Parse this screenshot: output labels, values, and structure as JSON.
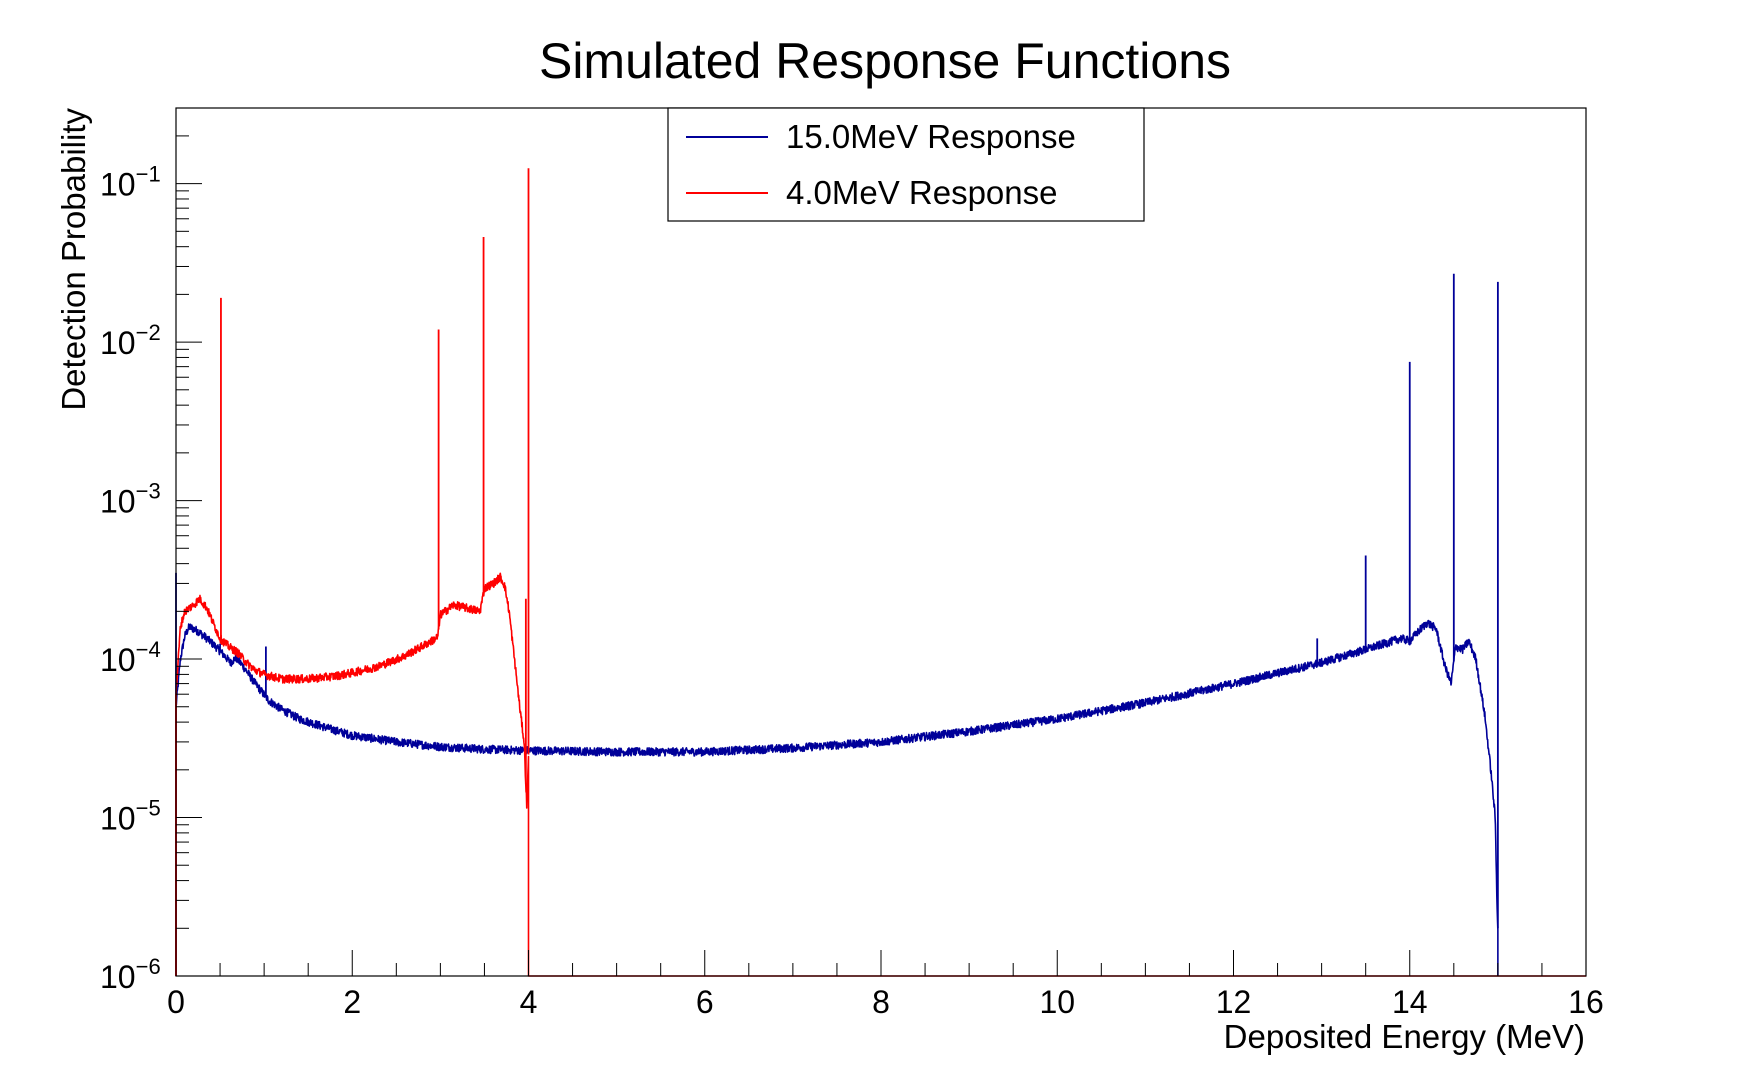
{
  "chart_data": {
    "type": "line",
    "title": "Simulated Response Functions",
    "xlabel": "Deposited Energy (MeV)",
    "ylabel": "Detection Probability",
    "xlim": [
      0,
      16
    ],
    "ylim": [
      1e-06,
      0.3
    ],
    "yscale": "log",
    "grid": false,
    "legend_position": "top-center",
    "x_ticks": [
      "0",
      "2",
      "4",
      "6",
      "8",
      "10",
      "12",
      "14",
      "16"
    ],
    "y_ticks": [
      {
        "base": "10",
        "exp": "−6",
        "value": 1e-06
      },
      {
        "base": "10",
        "exp": "−5",
        "value": 1e-05
      },
      {
        "base": "10",
        "exp": "−4",
        "value": 0.0001
      },
      {
        "base": "10",
        "exp": "−3",
        "value": 0.001
      },
      {
        "base": "10",
        "exp": "−2",
        "value": 0.01
      },
      {
        "base": "10",
        "exp": "−1",
        "value": 0.1
      }
    ],
    "series": [
      {
        "name": "15.0MeV Response",
        "color": "#000099",
        "points": [
          [
            0.0,
            5e-05
          ],
          [
            0.05,
            0.0001
          ],
          [
            0.1,
            0.00014
          ],
          [
            0.15,
            0.00016
          ],
          [
            0.25,
            0.00015
          ],
          [
            0.35,
            0.000135
          ],
          [
            0.45,
            0.00012
          ],
          [
            0.55,
            0.000105
          ],
          [
            0.62,
            9.5e-05
          ],
          [
            0.68,
            0.000102
          ],
          [
            0.75,
            9.2e-05
          ],
          [
            0.9,
            7e-05
          ],
          [
            1.05,
            5.5e-05
          ],
          [
            1.2,
            4.8e-05
          ],
          [
            1.4,
            4.2e-05
          ],
          [
            1.7,
            3.7e-05
          ],
          [
            2.0,
            3.3e-05
          ],
          [
            2.5,
            3e-05
          ],
          [
            3.0,
            2.8e-05
          ],
          [
            3.5,
            2.7e-05
          ],
          [
            4.0,
            2.65e-05
          ],
          [
            5.0,
            2.6e-05
          ],
          [
            6.0,
            2.6e-05
          ],
          [
            7.0,
            2.75e-05
          ],
          [
            8.0,
            3e-05
          ],
          [
            9.0,
            3.5e-05
          ],
          [
            10.0,
            4.2e-05
          ],
          [
            11.0,
            5.3e-05
          ],
          [
            12.0,
            7e-05
          ],
          [
            13.0,
            9.5e-05
          ],
          [
            13.5,
            0.000115
          ],
          [
            13.9,
            0.000135
          ],
          [
            14.0,
            0.00013
          ],
          [
            14.1,
            0.00015
          ],
          [
            14.2,
            0.00017
          ],
          [
            14.3,
            0.000155
          ],
          [
            14.4,
            9e-05
          ],
          [
            14.47,
            7e-05
          ],
          [
            14.52,
            0.00012
          ],
          [
            14.6,
            0.000115
          ],
          [
            14.67,
            0.00013
          ],
          [
            14.75,
            0.0001
          ],
          [
            14.85,
            4.5e-05
          ],
          [
            14.92,
            2e-05
          ],
          [
            14.97,
            1e-05
          ],
          [
            14.99,
            3e-06
          ],
          [
            15.0,
            2e-06
          ]
        ],
        "spikes": [
          [
            0.0,
            0.00035
          ],
          [
            0.5,
            0.000125
          ],
          [
            1.02,
            0.00012
          ],
          [
            12.95,
            0.000135
          ],
          [
            13.5,
            0.00045
          ],
          [
            14.0,
            0.0075
          ],
          [
            14.5,
            0.027
          ],
          [
            15.0,
            0.024
          ]
        ]
      },
      {
        "name": "4.0MeV Response",
        "color": "#ff0000",
        "points": [
          [
            0.0,
            6e-05
          ],
          [
            0.05,
            0.00016
          ],
          [
            0.1,
            0.0002
          ],
          [
            0.2,
            0.00022
          ],
          [
            0.27,
            0.00024
          ],
          [
            0.35,
            0.00021
          ],
          [
            0.42,
            0.00017
          ],
          [
            0.5,
            0.000135
          ],
          [
            0.6,
            0.00012
          ],
          [
            0.7,
            0.00011
          ],
          [
            0.8,
            9.5e-05
          ],
          [
            0.9,
            8.5e-05
          ],
          [
            1.0,
            8e-05
          ],
          [
            1.2,
            7.5e-05
          ],
          [
            1.5,
            7.5e-05
          ],
          [
            1.8,
            7.8e-05
          ],
          [
            2.0,
            8.2e-05
          ],
          [
            2.3,
            9e-05
          ],
          [
            2.6,
            0.000105
          ],
          [
            2.9,
            0.00013
          ],
          [
            2.97,
            0.000138
          ],
          [
            3.0,
            0.00019
          ],
          [
            3.15,
            0.00022
          ],
          [
            3.3,
            0.00021
          ],
          [
            3.45,
            0.0002
          ],
          [
            3.5,
            0.00028
          ],
          [
            3.6,
            0.0003
          ],
          [
            3.68,
            0.00033
          ],
          [
            3.73,
            0.00029
          ],
          [
            3.78,
            0.0002
          ],
          [
            3.85,
            9e-05
          ],
          [
            3.9,
            5e-05
          ],
          [
            3.95,
            3e-05
          ],
          [
            3.98,
            1.2e-05
          ],
          [
            4.0,
            2.5e-05
          ]
        ],
        "spikes": [
          [
            0.0,
            1e-06
          ],
          [
            0.51,
            0.019
          ],
          [
            2.98,
            0.012
          ],
          [
            3.49,
            0.046
          ],
          [
            3.97,
            0.00024
          ],
          [
            4.0,
            0.125
          ]
        ]
      }
    ]
  }
}
